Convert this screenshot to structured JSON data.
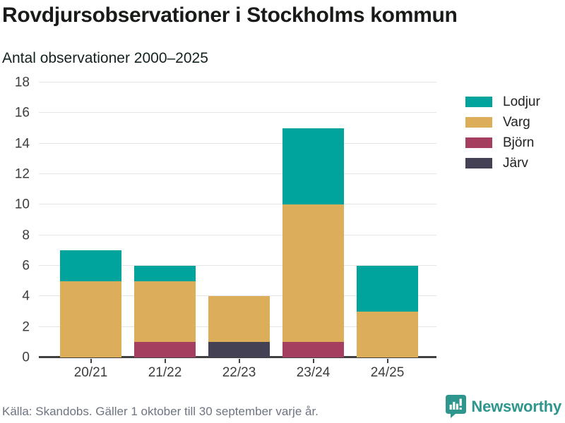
{
  "header": {
    "title": "Rovdjursobservationer i Stockholms kommun",
    "subtitle": "Antal observationer 2000–2025"
  },
  "chart_data": {
    "type": "bar",
    "stacked": true,
    "title": "Rovdjursobservationer i Stockholms kommun",
    "subtitle": "Antal observationer 2000–2025",
    "categories": [
      "20/21",
      "21/22",
      "22/23",
      "23/24",
      "24/25"
    ],
    "series": [
      {
        "name": "Lodjur",
        "color": "#00a49c",
        "values": [
          2,
          1,
          0,
          5,
          3
        ]
      },
      {
        "name": "Varg",
        "color": "#dcae5a",
        "values": [
          5,
          4,
          3,
          9,
          3
        ]
      },
      {
        "name": "Björn",
        "color": "#a43f60",
        "values": [
          0,
          1,
          0,
          1,
          0
        ]
      },
      {
        "name": "Järv",
        "color": "#434153",
        "values": [
          0,
          0,
          1,
          0,
          0
        ]
      }
    ],
    "stack_order_bottom_to_top": [
      "Järv",
      "Björn",
      "Varg",
      "Lodjur"
    ],
    "totals": [
      7,
      6,
      4,
      15,
      6
    ],
    "xlabel": "",
    "ylabel": "",
    "ylim": [
      0,
      18
    ],
    "yticks": [
      0,
      2,
      4,
      6,
      8,
      10,
      12,
      14,
      16,
      18
    ],
    "grid": true,
    "legend_position": "right",
    "axis_color": "#404040",
    "grid_color": "#e5e5e5",
    "tick_label_color": "#3d3d3d"
  },
  "footer": {
    "source": "Källa: Skandobs. Gäller 1 oktober till 30 september varje år.",
    "brand": "Newsworthy",
    "brand_color": "#2f968d"
  }
}
